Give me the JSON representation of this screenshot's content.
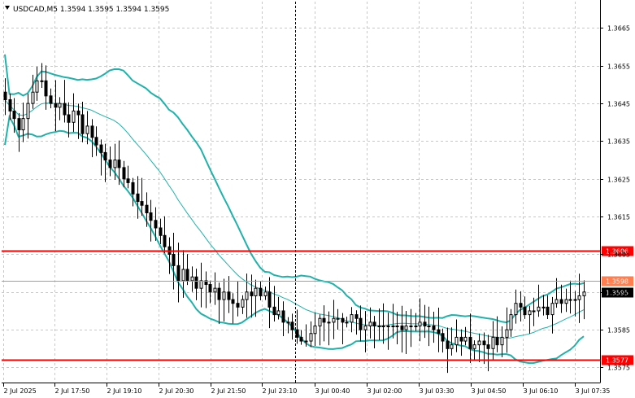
{
  "window": {
    "title": "USDCAD,M5  1.3594 1.3595 1.3594 1.3595"
  },
  "colors": {
    "background": "#ffffff",
    "grid": "#c8c8c8",
    "candle": "#000000",
    "bollinger": "#20b2aa",
    "resistance_line": "#ff0000",
    "minor_level_line": "#ff7f50",
    "current_price_box": "#000000"
  },
  "chart_data": {
    "type": "candlestick",
    "symbol": "USDCAD",
    "timeframe": "M5",
    "ylim": [
      1.3571,
      1.3672
    ],
    "y_ticks": [
      "1.3665",
      "1.3655",
      "1.3645",
      "1.3635",
      "1.3625",
      "1.3615",
      "1.3605",
      "1.3595",
      "1.3585",
      "1.3575"
    ],
    "x_ticks": [
      "2 Jul 2025",
      "2 Jul 17:50",
      "2 Jul 19:10",
      "2 Jul 20:30",
      "2 Jul 21:50",
      "2 Jul 23:10",
      "3 Jul 00:40",
      "3 Jul 02:00",
      "3 Jul 03:30",
      "3 Jul 04:50",
      "3 Jul 06:10",
      "3 Jul 07:35"
    ],
    "horizontal_levels": [
      {
        "label": "1.3606",
        "value": 1.3606,
        "style": "thick-red"
      },
      {
        "label": "1.3598",
        "value": 1.3598,
        "style": "thin-orange"
      },
      {
        "label": "1.3577",
        "value": 1.3577,
        "style": "thick-red"
      }
    ],
    "current_price": {
      "label": "1.3595",
      "value": 1.3595
    },
    "vertical_marker": {
      "style": "dashed",
      "near": "2 Jul 23:10"
    },
    "close": [
      1.3646,
      1.3643,
      1.3641,
      1.3638,
      1.3641,
      1.3645,
      1.3648,
      1.3651,
      1.3651,
      1.3647,
      1.3645,
      1.3644,
      1.3645,
      1.3642,
      1.364,
      1.3643,
      1.3642,
      1.3637,
      1.3639,
      1.3636,
      1.3634,
      1.3632,
      1.363,
      1.3628,
      1.363,
      1.3628,
      1.3625,
      1.3624,
      1.3621,
      1.3619,
      1.3618,
      1.3616,
      1.3614,
      1.3612,
      1.361,
      1.3607,
      1.3605,
      1.3602,
      1.3598,
      1.3601,
      1.3598,
      1.3599,
      1.3596,
      1.3598,
      1.3597,
      1.3595,
      1.3596,
      1.3593,
      1.3595,
      1.3593,
      1.3592,
      1.3591,
      1.3593,
      1.3595,
      1.3594,
      1.3596,
      1.3594,
      1.3595,
      1.3591,
      1.3589,
      1.359,
      1.3587,
      1.3587,
      1.3585,
      1.3583,
      1.3582,
      1.3582,
      1.3584,
      1.3586,
      1.3588,
      1.3587,
      1.3587,
      1.3588,
      1.3588,
      1.3587,
      1.3587,
      1.3589,
      1.3588,
      1.3585,
      1.3586,
      1.3587,
      1.3586,
      1.3586,
      1.3586,
      1.3586,
      1.3586,
      1.3586,
      1.3585,
      1.3586,
      1.3586,
      1.3586,
      1.3587,
      1.3586,
      1.3586,
      1.3585,
      1.3584,
      1.3582,
      1.358,
      1.3581,
      1.3583,
      1.3582,
      1.3583,
      1.358,
      1.3581,
      1.3582,
      1.3581,
      1.358,
      1.3583,
      1.3581,
      1.3583,
      1.3585,
      1.3589,
      1.3592,
      1.3591,
      1.3589,
      1.359,
      1.359,
      1.3591,
      1.3591,
      1.3589,
      1.3592,
      1.3593,
      1.3592,
      1.3593,
      1.3593,
      1.3593,
      1.3594,
      1.3595
    ],
    "bollinger_bands": {
      "period": 20,
      "series": [
        "upper",
        "middle",
        "lower"
      ]
    }
  }
}
